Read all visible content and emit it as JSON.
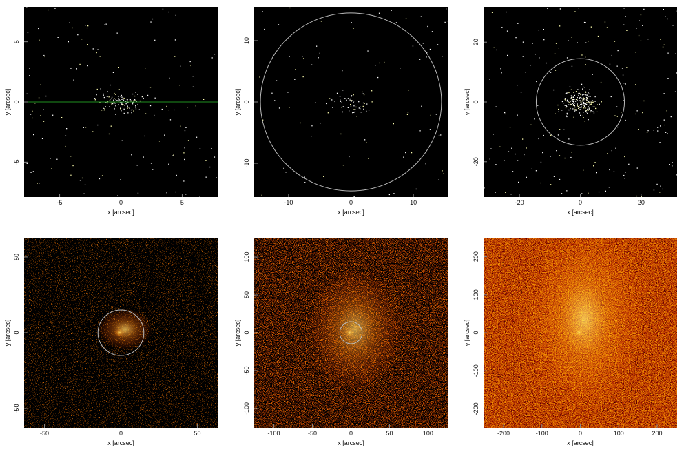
{
  "chart_data": [
    {
      "type": "image",
      "xlabel": "x [arcsec]",
      "ylabel": "y [arcsec]",
      "xlim": [
        -7.9,
        7.9
      ],
      "ylim": [
        -7.9,
        7.9
      ],
      "xticks": [
        -5,
        0,
        5
      ],
      "yticks": [
        -5,
        0,
        5
      ],
      "crosshair": {
        "x": 0,
        "y": 0,
        "color": "#1f8f1f"
      }
    },
    {
      "type": "image",
      "xlabel": "x [arcsec]",
      "ylabel": "y [arcsec]",
      "xlim": [
        -15.5,
        15.5
      ],
      "ylim": [
        -15.5,
        15.5
      ],
      "xticks": [
        -10,
        0,
        10
      ],
      "yticks": [
        -10,
        0,
        10
      ],
      "circle": {
        "x": 0,
        "y": 0,
        "r": 14.5,
        "color": "#bbbbbb"
      }
    },
    {
      "type": "image",
      "xlabel": "x [arcsec]",
      "ylabel": "y [arcsec]",
      "xlim": [
        -31.8,
        31.8
      ],
      "ylim": [
        -31.8,
        31.8
      ],
      "xticks": [
        -20,
        0,
        20
      ],
      "yticks": [
        -20,
        0,
        20
      ],
      "circle": {
        "x": 0,
        "y": 0,
        "r": 14.5,
        "color": "#bbbbbb"
      }
    },
    {
      "type": "image",
      "xlabel": "x [arcsec]",
      "ylabel": "y [arcsec]",
      "xlim": [
        -63.3,
        63.3
      ],
      "ylim": [
        -62.7,
        62.7
      ],
      "xticks": [
        -50,
        0,
        50
      ],
      "yticks": [
        -50,
        0,
        50
      ],
      "circle": {
        "x": 0,
        "y": 0,
        "r": 15,
        "color": "#bbbbbb"
      }
    },
    {
      "type": "image",
      "xlabel": "x [arcsec]",
      "ylabel": "y [arcsec]",
      "xlim": [
        -125.5,
        125.5
      ],
      "ylim": [
        -125.5,
        125.5
      ],
      "xticks": [
        -100,
        -50,
        0,
        50,
        100
      ],
      "yticks": [
        -100,
        -50,
        0,
        50,
        100
      ],
      "circle": {
        "x": 0,
        "y": 0,
        "r": 14.5,
        "color": "#bbbbbb"
      }
    },
    {
      "type": "image",
      "xlabel": "x [arcsec]",
      "ylabel": "y [arcsec]",
      "xlim": [
        -252,
        252
      ],
      "ylim": [
        -250,
        250
      ],
      "xticks": [
        -200,
        -100,
        0,
        100,
        200
      ],
      "yticks": [
        -200,
        -100,
        0,
        100,
        200
      ]
    }
  ]
}
